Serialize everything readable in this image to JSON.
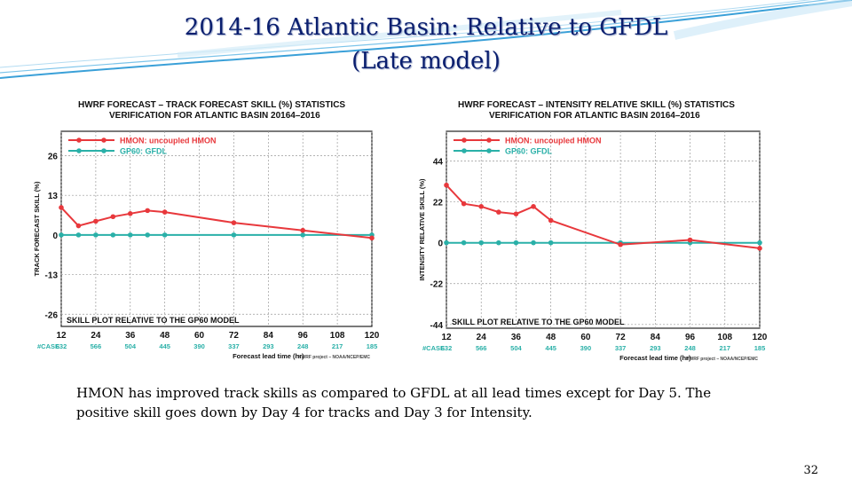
{
  "slide": {
    "title_line1": "2014-16 Atlantic Basin: Relative to GFDL",
    "title_line2": "(Late model)",
    "caption": "HMON has improved track skills as compared to GFDL at all lead times except for Day 5. The positive skill goes down by Day 4 for tracks and Day 3 for Intensity.",
    "page_number": "32",
    "colors": {
      "title": "#0a1e6e",
      "deco_blue": "#3aa0d8",
      "hmon": "#e8383c",
      "gfdl": "#2ab0a8",
      "grid": "#9a9a9a"
    }
  },
  "chart_data": [
    {
      "type": "line",
      "header1": "HWRF FORECAST – TRACK FORECAST SKILL (%) STATISTICS",
      "header2": "VERIFICATION FOR ATLANTIC BASIN 20164–2016",
      "ylabel": "TRACK FORECAST SKILL (%)",
      "xlabel": "Forecast lead time (hr)",
      "footer_note": "HWRF project – NOAA/NCEP/EMC",
      "bottom_label": "SKILL PLOT RELATIVE TO THE GP60 MODEL",
      "case_label": "#CASE",
      "x": [
        12,
        24,
        36,
        48,
        60,
        72,
        84,
        96,
        108,
        120
      ],
      "xlim": [
        12,
        120
      ],
      "ylim": [
        -30,
        34
      ],
      "yticks": [
        26,
        13,
        0,
        -13,
        -26
      ],
      "ytick_labels": [
        "26",
        "13",
        "0",
        "-13",
        "-26"
      ],
      "cases": [
        "632",
        "566",
        "504",
        "445",
        "390",
        "337",
        "293",
        "248",
        "217",
        "185"
      ],
      "grid": true,
      "legend_position": "top-left",
      "series": [
        {
          "name": "HMON: uncoupled HMON",
          "x": [
            12,
            18,
            24,
            30,
            36,
            42,
            48,
            72,
            96,
            120
          ],
          "values": [
            9,
            3,
            4.5,
            6,
            7,
            8,
            7.5,
            4,
            1.5,
            -1
          ]
        },
        {
          "name": "GP60: GFDL",
          "x": [
            12,
            18,
            24,
            30,
            36,
            42,
            48,
            72,
            96,
            120
          ],
          "values": [
            0,
            0,
            0,
            0,
            0,
            0,
            0,
            0,
            0,
            0
          ]
        }
      ]
    },
    {
      "type": "line",
      "header1": "HWRF FORECAST – INTENSITY RELATIVE SKILL (%) STATISTICS",
      "header2": "VERIFICATION FOR ATLANTIC BASIN 20164–2016",
      "ylabel": "INTENSITY RELATIVE SKILL (%)",
      "xlabel": "Forecast lead time (hr)",
      "footer_note": "HWRF project – NOAA/NCEP/EMC",
      "bottom_label": "SKILL PLOT RELATIVE TO THE GP60 MODEL",
      "case_label": "#CASE",
      "x": [
        12,
        24,
        36,
        48,
        60,
        72,
        84,
        96,
        108,
        120
      ],
      "xlim": [
        12,
        120
      ],
      "ylim": [
        -46,
        60
      ],
      "yticks": [
        44,
        22,
        0,
        -22,
        -44
      ],
      "ytick_labels": [
        "44",
        "22",
        "0",
        "-22",
        "-44"
      ],
      "cases": [
        "632",
        "566",
        "504",
        "445",
        "390",
        "337",
        "293",
        "248",
        "217",
        "185"
      ],
      "grid": true,
      "legend_position": "top-left",
      "series": [
        {
          "name": "HMON: uncoupled HMON",
          "x": [
            12,
            18,
            24,
            30,
            36,
            42,
            48,
            72,
            96,
            120
          ],
          "values": [
            31,
            21,
            19.5,
            16.5,
            15.5,
            19.5,
            12,
            -1,
            1.5,
            -3
          ]
        },
        {
          "name": "GP60: GFDL",
          "x": [
            12,
            18,
            24,
            30,
            36,
            42,
            48,
            72,
            96,
            120
          ],
          "values": [
            0,
            0,
            0,
            0,
            0,
            0,
            0,
            0,
            0,
            0
          ]
        }
      ]
    }
  ]
}
